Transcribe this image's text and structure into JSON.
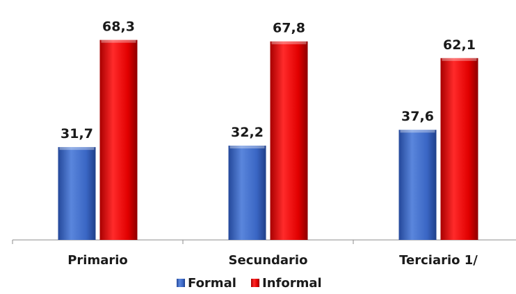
{
  "chart_data": {
    "type": "bar",
    "categories": [
      "Primario",
      "Secundario",
      "Terciario 1/"
    ],
    "series": [
      {
        "name": "Formal",
        "values": [
          31.7,
          32.2,
          37.6
        ],
        "labels": [
          "31,7",
          "32,2",
          "37,6"
        ],
        "color": "#3a66c4"
      },
      {
        "name": "Informal",
        "values": [
          68.3,
          67.8,
          62.1
        ],
        "labels": [
          "68,3",
          "67,8",
          "62,1"
        ],
        "color": "#e10000"
      }
    ],
    "title": "",
    "xlabel": "",
    "ylabel": "",
    "ylim": [
      0,
      72
    ],
    "grid": false,
    "legend": "bottom"
  }
}
